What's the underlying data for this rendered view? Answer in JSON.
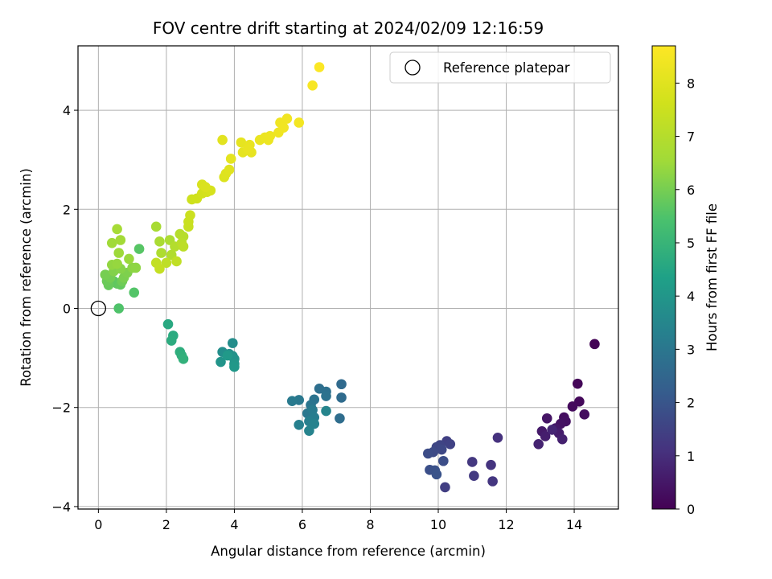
{
  "chart_data": {
    "type": "scatter",
    "title": "FOV centre drift starting at 2024/02/09 12:16:59",
    "xlabel": "Angular distance from reference (arcmin)",
    "ylabel": "Rotation from reference (arcmin)",
    "xlim": [
      -0.6,
      15.3
    ],
    "ylim": [
      -4.05,
      5.3
    ],
    "xticks": [
      0,
      2,
      4,
      6,
      8,
      10,
      12,
      14
    ],
    "yticks": [
      -4,
      -2,
      0,
      2,
      4
    ],
    "grid": true,
    "legend": {
      "location": "top-right",
      "entries": [
        "Reference platepar"
      ]
    },
    "reference_point": {
      "x": 0,
      "y": 0
    },
    "colorbar": {
      "label": "Hours from first FF file",
      "colormap": "viridis",
      "range": [
        0,
        8.7
      ],
      "ticks": [
        0,
        1,
        2,
        3,
        4,
        5,
        6,
        7,
        8
      ]
    },
    "points": [
      {
        "x": 14.6,
        "y": -0.72,
        "c": 0.05
      },
      {
        "x": 14.1,
        "y": -1.52,
        "c": 0.1
      },
      {
        "x": 14.15,
        "y": -1.88,
        "c": 0.15
      },
      {
        "x": 13.95,
        "y": -1.98,
        "c": 0.2
      },
      {
        "x": 14.3,
        "y": -2.14,
        "c": 0.25
      },
      {
        "x": 13.7,
        "y": -2.2,
        "c": 0.3
      },
      {
        "x": 13.75,
        "y": -2.28,
        "c": 0.35
      },
      {
        "x": 13.6,
        "y": -2.33,
        "c": 0.4
      },
      {
        "x": 13.2,
        "y": -2.22,
        "c": 0.45
      },
      {
        "x": 13.45,
        "y": -2.42,
        "c": 0.5
      },
      {
        "x": 13.05,
        "y": -2.48,
        "c": 0.55
      },
      {
        "x": 13.55,
        "y": -2.52,
        "c": 0.6
      },
      {
        "x": 13.15,
        "y": -2.58,
        "c": 0.65
      },
      {
        "x": 13.65,
        "y": -2.64,
        "c": 0.7
      },
      {
        "x": 12.95,
        "y": -2.74,
        "c": 0.75
      },
      {
        "x": 13.35,
        "y": -2.45,
        "c": 0.8
      },
      {
        "x": 11.75,
        "y": -2.61,
        "c": 1.1
      },
      {
        "x": 11.55,
        "y": -3.16,
        "c": 1.15
      },
      {
        "x": 11.6,
        "y": -3.49,
        "c": 1.2
      },
      {
        "x": 11.0,
        "y": -3.1,
        "c": 1.25
      },
      {
        "x": 11.05,
        "y": -3.38,
        "c": 1.3
      },
      {
        "x": 10.2,
        "y": -3.61,
        "c": 1.4
      },
      {
        "x": 10.25,
        "y": -2.68,
        "c": 1.45
      },
      {
        "x": 10.35,
        "y": -2.74,
        "c": 1.5
      },
      {
        "x": 10.05,
        "y": -2.76,
        "c": 1.55
      },
      {
        "x": 9.95,
        "y": -2.8,
        "c": 1.6
      },
      {
        "x": 10.1,
        "y": -2.85,
        "c": 1.65
      },
      {
        "x": 9.85,
        "y": -2.9,
        "c": 1.7
      },
      {
        "x": 9.7,
        "y": -2.93,
        "c": 1.75
      },
      {
        "x": 10.15,
        "y": -3.08,
        "c": 1.8
      },
      {
        "x": 9.75,
        "y": -3.26,
        "c": 1.85
      },
      {
        "x": 9.9,
        "y": -3.27,
        "c": 1.9
      },
      {
        "x": 9.95,
        "y": -3.35,
        "c": 1.95
      },
      {
        "x": 7.15,
        "y": -1.53,
        "c": 2.6
      },
      {
        "x": 7.15,
        "y": -1.8,
        "c": 2.65
      },
      {
        "x": 7.1,
        "y": -2.22,
        "c": 2.7
      },
      {
        "x": 6.5,
        "y": -1.62,
        "c": 2.75
      },
      {
        "x": 6.7,
        "y": -1.68,
        "c": 2.8
      },
      {
        "x": 6.7,
        "y": -1.77,
        "c": 2.85
      },
      {
        "x": 6.35,
        "y": -1.84,
        "c": 2.9
      },
      {
        "x": 6.25,
        "y": -1.95,
        "c": 2.95
      },
      {
        "x": 6.15,
        "y": -2.12,
        "c": 3.0
      },
      {
        "x": 5.9,
        "y": -1.85,
        "c": 3.05
      },
      {
        "x": 5.7,
        "y": -1.87,
        "c": 3.1
      },
      {
        "x": 6.3,
        "y": -2.05,
        "c": 3.15
      },
      {
        "x": 6.35,
        "y": -2.2,
        "c": 3.2
      },
      {
        "x": 6.2,
        "y": -2.28,
        "c": 3.25
      },
      {
        "x": 5.9,
        "y": -2.35,
        "c": 3.3
      },
      {
        "x": 6.35,
        "y": -2.33,
        "c": 3.35
      },
      {
        "x": 6.2,
        "y": -2.47,
        "c": 3.4
      },
      {
        "x": 6.7,
        "y": -2.07,
        "c": 3.45
      },
      {
        "x": 3.95,
        "y": -0.7,
        "c": 3.7
      },
      {
        "x": 3.65,
        "y": -0.88,
        "c": 3.75
      },
      {
        "x": 3.85,
        "y": -0.92,
        "c": 3.8
      },
      {
        "x": 3.95,
        "y": -0.96,
        "c": 3.85
      },
      {
        "x": 4.0,
        "y": -1.02,
        "c": 3.9
      },
      {
        "x": 3.6,
        "y": -1.08,
        "c": 3.95
      },
      {
        "x": 4.0,
        "y": -1.12,
        "c": 4.0
      },
      {
        "x": 4.0,
        "y": -1.18,
        "c": 4.05
      },
      {
        "x": 3.8,
        "y": -0.95,
        "c": 4.1
      },
      {
        "x": 2.05,
        "y": -0.32,
        "c": 4.6
      },
      {
        "x": 2.2,
        "y": -0.55,
        "c": 4.65
      },
      {
        "x": 2.15,
        "y": -0.65,
        "c": 4.7
      },
      {
        "x": 2.4,
        "y": -0.88,
        "c": 4.75
      },
      {
        "x": 2.45,
        "y": -0.95,
        "c": 4.8
      },
      {
        "x": 2.5,
        "y": -1.02,
        "c": 4.85
      },
      {
        "x": 0.6,
        "y": 0.0,
        "c": 5.5
      },
      {
        "x": 1.05,
        "y": 0.32,
        "c": 5.55
      },
      {
        "x": 1.2,
        "y": 1.2,
        "c": 5.6
      },
      {
        "x": 0.45,
        "y": 0.55,
        "c": 5.65
      },
      {
        "x": 0.55,
        "y": 0.5,
        "c": 5.7
      },
      {
        "x": 0.65,
        "y": 0.48,
        "c": 5.75
      },
      {
        "x": 0.3,
        "y": 0.47,
        "c": 5.8
      },
      {
        "x": 0.25,
        "y": 0.55,
        "c": 5.85
      },
      {
        "x": 0.7,
        "y": 0.55,
        "c": 5.9
      },
      {
        "x": 0.35,
        "y": 0.62,
        "c": 5.95
      },
      {
        "x": 0.2,
        "y": 0.68,
        "c": 6.0
      },
      {
        "x": 0.75,
        "y": 0.62,
        "c": 6.05
      },
      {
        "x": 0.85,
        "y": 0.72,
        "c": 6.1
      },
      {
        "x": 0.45,
        "y": 0.75,
        "c": 6.15
      },
      {
        "x": 0.65,
        "y": 0.8,
        "c": 6.2
      },
      {
        "x": 1.0,
        "y": 0.82,
        "c": 6.25
      },
      {
        "x": 1.1,
        "y": 0.82,
        "c": 6.3
      },
      {
        "x": 0.4,
        "y": 0.88,
        "c": 6.35
      },
      {
        "x": 0.55,
        "y": 0.9,
        "c": 6.4
      },
      {
        "x": 0.9,
        "y": 1.0,
        "c": 6.45
      },
      {
        "x": 0.6,
        "y": 1.12,
        "c": 6.5
      },
      {
        "x": 0.4,
        "y": 1.32,
        "c": 6.55
      },
      {
        "x": 0.65,
        "y": 1.38,
        "c": 6.6
      },
      {
        "x": 0.55,
        "y": 1.6,
        "c": 6.65
      },
      {
        "x": 1.7,
        "y": 1.65,
        "c": 6.7
      },
      {
        "x": 1.8,
        "y": 1.35,
        "c": 6.75
      },
      {
        "x": 2.1,
        "y": 1.38,
        "c": 6.8
      },
      {
        "x": 1.85,
        "y": 1.12,
        "c": 6.85
      },
      {
        "x": 2.15,
        "y": 1.08,
        "c": 6.9
      },
      {
        "x": 2.25,
        "y": 1.25,
        "c": 6.95
      },
      {
        "x": 2.4,
        "y": 1.5,
        "c": 7.0
      },
      {
        "x": 2.5,
        "y": 1.45,
        "c": 7.05
      },
      {
        "x": 2.45,
        "y": 1.32,
        "c": 7.1
      },
      {
        "x": 2.5,
        "y": 1.25,
        "c": 7.15
      },
      {
        "x": 2.0,
        "y": 0.92,
        "c": 7.2
      },
      {
        "x": 2.3,
        "y": 0.95,
        "c": 7.25
      },
      {
        "x": 1.7,
        "y": 0.92,
        "c": 7.3
      },
      {
        "x": 1.8,
        "y": 0.8,
        "c": 7.35
      },
      {
        "x": 2.65,
        "y": 1.65,
        "c": 7.4
      },
      {
        "x": 2.65,
        "y": 1.75,
        "c": 7.45
      },
      {
        "x": 2.7,
        "y": 1.88,
        "c": 7.5
      },
      {
        "x": 2.75,
        "y": 2.2,
        "c": 7.55
      },
      {
        "x": 2.9,
        "y": 2.22,
        "c": 7.6
      },
      {
        "x": 3.05,
        "y": 2.32,
        "c": 7.65
      },
      {
        "x": 3.2,
        "y": 2.35,
        "c": 7.7
      },
      {
        "x": 3.3,
        "y": 2.38,
        "c": 7.75
      },
      {
        "x": 3.05,
        "y": 2.5,
        "c": 7.8
      },
      {
        "x": 3.15,
        "y": 2.45,
        "c": 7.85
      },
      {
        "x": 3.7,
        "y": 2.65,
        "c": 7.9
      },
      {
        "x": 3.75,
        "y": 2.72,
        "c": 7.95
      },
      {
        "x": 3.85,
        "y": 2.8,
        "c": 8.0
      },
      {
        "x": 3.65,
        "y": 3.4,
        "c": 8.05
      },
      {
        "x": 3.9,
        "y": 3.02,
        "c": 8.1
      },
      {
        "x": 4.25,
        "y": 3.15,
        "c": 8.12
      },
      {
        "x": 4.2,
        "y": 3.35,
        "c": 8.15
      },
      {
        "x": 4.5,
        "y": 3.15,
        "c": 8.18
      },
      {
        "x": 4.45,
        "y": 3.3,
        "c": 8.2
      },
      {
        "x": 4.4,
        "y": 3.22,
        "c": 8.22
      },
      {
        "x": 4.75,
        "y": 3.4,
        "c": 8.25
      },
      {
        "x": 4.9,
        "y": 3.45,
        "c": 8.28
      },
      {
        "x": 5.0,
        "y": 3.4,
        "c": 8.3
      },
      {
        "x": 5.05,
        "y": 3.48,
        "c": 8.32
      },
      {
        "x": 5.3,
        "y": 3.55,
        "c": 8.35
      },
      {
        "x": 5.35,
        "y": 3.75,
        "c": 8.38
      },
      {
        "x": 5.45,
        "y": 3.65,
        "c": 8.4
      },
      {
        "x": 5.55,
        "y": 3.83,
        "c": 8.42
      },
      {
        "x": 5.9,
        "y": 3.75,
        "c": 8.45
      },
      {
        "x": 6.3,
        "y": 4.5,
        "c": 8.55
      },
      {
        "x": 6.5,
        "y": 4.87,
        "c": 8.65
      }
    ]
  }
}
